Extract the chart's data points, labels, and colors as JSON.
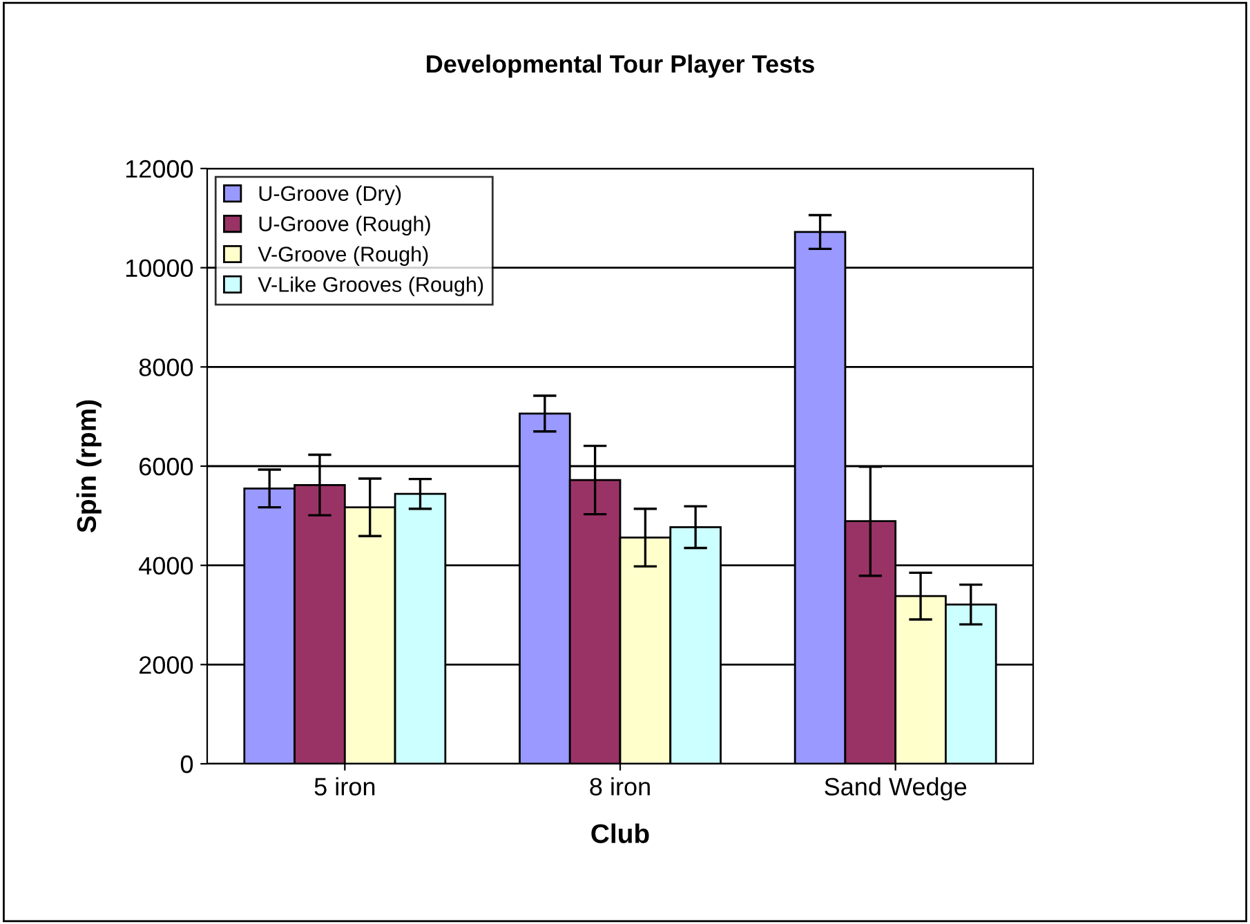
{
  "chart_data": {
    "type": "bar",
    "title": "Developmental Tour Player Tests",
    "xlabel": "Club",
    "ylabel": "Spin (rpm)",
    "categories": [
      "5 iron",
      "8 iron",
      "Sand Wedge"
    ],
    "series": [
      {
        "name": "U-Groove (Dry)",
        "color": "#9999ff",
        "values": [
          5550,
          7060,
          10720
        ],
        "errors": [
          380,
          360,
          340
        ]
      },
      {
        "name": "U-Groove (Rough)",
        "color": "#993366",
        "values": [
          5620,
          5720,
          4890
        ],
        "errors": [
          610,
          690,
          1100
        ]
      },
      {
        "name": "V-Groove (Rough)",
        "color": "#ffffcc",
        "values": [
          5170,
          4560,
          3380
        ],
        "errors": [
          580,
          580,
          470
        ]
      },
      {
        "name": "V-Like Grooves (Rough)",
        "color": "#ccffff",
        "values": [
          5440,
          4770,
          3210
        ],
        "errors": [
          300,
          420,
          400
        ]
      }
    ],
    "ylim": [
      0,
      12000
    ],
    "yticks": [
      0,
      2000,
      4000,
      6000,
      8000,
      10000,
      12000
    ],
    "grid": "y",
    "legend": "top left"
  }
}
